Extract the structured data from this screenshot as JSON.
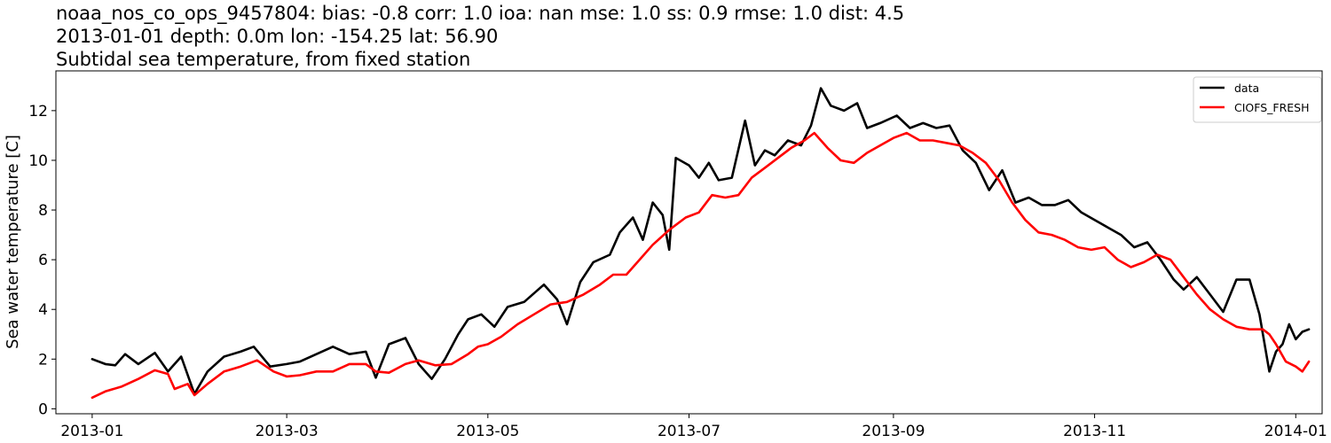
{
  "title": {
    "line1": "noaa_nos_co_ops_9457804: bias: -0.8  corr: 1.0  ioa: nan  mse: 1.0  ss: 0.9  rmse: 1.0  dist: 4.5",
    "line2": "2013-01-01 depth: 0.0m lon: -154.25 lat: 56.90",
    "line3": "Subtidal sea temperature, from fixed station"
  },
  "chart_data": {
    "type": "line",
    "ylabel": "Sea water temperature [C]",
    "xlabel": "",
    "xlim": [
      "2012-12-21",
      "2014-01-09"
    ],
    "ylim": [
      -0.2,
      13.6
    ],
    "x_ticks": [
      "2013-01",
      "2013-03",
      "2013-05",
      "2013-07",
      "2013-09",
      "2013-11",
      "2014-01"
    ],
    "y_ticks": [
      0,
      2,
      4,
      6,
      8,
      10,
      12
    ],
    "grid": false,
    "legend_position": "top-right",
    "series": [
      {
        "name": "data",
        "color": "#000000",
        "points": [
          [
            "2013-01-01",
            2.0
          ],
          [
            "2013-01-05",
            1.8
          ],
          [
            "2013-01-08",
            1.75
          ],
          [
            "2013-01-11",
            2.2
          ],
          [
            "2013-01-15",
            1.8
          ],
          [
            "2013-01-20",
            2.25
          ],
          [
            "2013-01-24",
            1.5
          ],
          [
            "2013-01-28",
            2.1
          ],
          [
            "2013-02-01",
            0.6
          ],
          [
            "2013-02-05",
            1.5
          ],
          [
            "2013-02-10",
            2.1
          ],
          [
            "2013-02-15",
            2.3
          ],
          [
            "2013-02-19",
            2.5
          ],
          [
            "2013-02-24",
            1.7
          ],
          [
            "2013-03-01",
            1.8
          ],
          [
            "2013-03-05",
            1.9
          ],
          [
            "2013-03-10",
            2.2
          ],
          [
            "2013-03-15",
            2.5
          ],
          [
            "2013-03-20",
            2.2
          ],
          [
            "2013-03-25",
            2.3
          ],
          [
            "2013-03-28",
            1.25
          ],
          [
            "2013-04-01",
            2.6
          ],
          [
            "2013-04-06",
            2.85
          ],
          [
            "2013-04-10",
            1.8
          ],
          [
            "2013-04-14",
            1.2
          ],
          [
            "2013-04-18",
            2.0
          ],
          [
            "2013-04-22",
            3.0
          ],
          [
            "2013-04-25",
            3.6
          ],
          [
            "2013-04-29",
            3.8
          ],
          [
            "2013-05-03",
            3.3
          ],
          [
            "2013-05-07",
            4.1
          ],
          [
            "2013-05-12",
            4.3
          ],
          [
            "2013-05-18",
            5.0
          ],
          [
            "2013-05-22",
            4.4
          ],
          [
            "2013-05-25",
            3.4
          ],
          [
            "2013-05-29",
            5.1
          ],
          [
            "2013-06-02",
            5.9
          ],
          [
            "2013-06-07",
            6.2
          ],
          [
            "2013-06-10",
            7.1
          ],
          [
            "2013-06-14",
            7.7
          ],
          [
            "2013-06-17",
            6.8
          ],
          [
            "2013-06-20",
            8.3
          ],
          [
            "2013-06-23",
            7.8
          ],
          [
            "2013-06-25",
            6.4
          ],
          [
            "2013-06-27",
            10.1
          ],
          [
            "2013-07-01",
            9.8
          ],
          [
            "2013-07-04",
            9.3
          ],
          [
            "2013-07-07",
            9.9
          ],
          [
            "2013-07-10",
            9.2
          ],
          [
            "2013-07-14",
            9.3
          ],
          [
            "2013-07-18",
            11.6
          ],
          [
            "2013-07-21",
            9.8
          ],
          [
            "2013-07-24",
            10.4
          ],
          [
            "2013-07-27",
            10.2
          ],
          [
            "2013-07-31",
            10.8
          ],
          [
            "2013-08-04",
            10.6
          ],
          [
            "2013-08-07",
            11.4
          ],
          [
            "2013-08-10",
            12.9
          ],
          [
            "2013-08-13",
            12.2
          ],
          [
            "2013-08-17",
            12.0
          ],
          [
            "2013-08-21",
            12.3
          ],
          [
            "2013-08-24",
            11.3
          ],
          [
            "2013-08-28",
            11.5
          ],
          [
            "2013-09-02",
            11.8
          ],
          [
            "2013-09-06",
            11.3
          ],
          [
            "2013-09-10",
            11.5
          ],
          [
            "2013-09-14",
            11.3
          ],
          [
            "2013-09-18",
            11.4
          ],
          [
            "2013-09-22",
            10.4
          ],
          [
            "2013-09-26",
            9.9
          ],
          [
            "2013-09-30",
            8.8
          ],
          [
            "2013-10-04",
            9.6
          ],
          [
            "2013-10-08",
            8.3
          ],
          [
            "2013-10-12",
            8.5
          ],
          [
            "2013-10-16",
            8.2
          ],
          [
            "2013-10-20",
            8.2
          ],
          [
            "2013-10-24",
            8.4
          ],
          [
            "2013-10-28",
            7.9
          ],
          [
            "2013-11-01",
            7.6
          ],
          [
            "2013-11-05",
            7.3
          ],
          [
            "2013-11-09",
            7.0
          ],
          [
            "2013-11-13",
            6.5
          ],
          [
            "2013-11-17",
            6.7
          ],
          [
            "2013-11-21",
            6.0
          ],
          [
            "2013-11-25",
            5.2
          ],
          [
            "2013-11-28",
            4.8
          ],
          [
            "2013-12-02",
            5.3
          ],
          [
            "2013-12-06",
            4.6
          ],
          [
            "2013-12-10",
            3.9
          ],
          [
            "2013-12-14",
            5.2
          ],
          [
            "2013-12-18",
            5.2
          ],
          [
            "2013-12-21",
            3.8
          ],
          [
            "2013-12-24",
            1.5
          ],
          [
            "2013-12-26",
            2.3
          ],
          [
            "2013-12-28",
            2.6
          ],
          [
            "2013-12-30",
            3.4
          ],
          [
            "2014-01-01",
            2.8
          ],
          [
            "2014-01-03",
            3.1
          ],
          [
            "2014-01-05",
            3.2
          ]
        ]
      },
      {
        "name": "CIOFS_FRESH",
        "color": "#ff0000",
        "points": [
          [
            "2013-01-01",
            0.45
          ],
          [
            "2013-01-05",
            0.7
          ],
          [
            "2013-01-10",
            0.9
          ],
          [
            "2013-01-15",
            1.2
          ],
          [
            "2013-01-20",
            1.55
          ],
          [
            "2013-01-24",
            1.4
          ],
          [
            "2013-01-26",
            0.8
          ],
          [
            "2013-01-30",
            1.0
          ],
          [
            "2013-02-01",
            0.55
          ],
          [
            "2013-02-05",
            1.0
          ],
          [
            "2013-02-10",
            1.5
          ],
          [
            "2013-02-15",
            1.7
          ],
          [
            "2013-02-20",
            1.95
          ],
          [
            "2013-02-25",
            1.5
          ],
          [
            "2013-03-01",
            1.3
          ],
          [
            "2013-03-05",
            1.35
          ],
          [
            "2013-03-10",
            1.5
          ],
          [
            "2013-03-15",
            1.5
          ],
          [
            "2013-03-20",
            1.8
          ],
          [
            "2013-03-25",
            1.8
          ],
          [
            "2013-03-28",
            1.5
          ],
          [
            "2013-04-01",
            1.45
          ],
          [
            "2013-04-06",
            1.8
          ],
          [
            "2013-04-10",
            1.95
          ],
          [
            "2013-04-15",
            1.75
          ],
          [
            "2013-04-20",
            1.8
          ],
          [
            "2013-04-25",
            2.2
          ],
          [
            "2013-04-28",
            2.5
          ],
          [
            "2013-05-01",
            2.6
          ],
          [
            "2013-05-05",
            2.9
          ],
          [
            "2013-05-10",
            3.4
          ],
          [
            "2013-05-15",
            3.8
          ],
          [
            "2013-05-20",
            4.2
          ],
          [
            "2013-05-25",
            4.3
          ],
          [
            "2013-05-30",
            4.6
          ],
          [
            "2013-06-04",
            5.0
          ],
          [
            "2013-06-08",
            5.4
          ],
          [
            "2013-06-12",
            5.4
          ],
          [
            "2013-06-16",
            6.0
          ],
          [
            "2013-06-20",
            6.6
          ],
          [
            "2013-06-25",
            7.2
          ],
          [
            "2013-06-30",
            7.7
          ],
          [
            "2013-07-04",
            7.9
          ],
          [
            "2013-07-08",
            8.6
          ],
          [
            "2013-07-12",
            8.5
          ],
          [
            "2013-07-16",
            8.6
          ],
          [
            "2013-07-20",
            9.3
          ],
          [
            "2013-07-24",
            9.7
          ],
          [
            "2013-07-28",
            10.1
          ],
          [
            "2013-08-01",
            10.5
          ],
          [
            "2013-08-05",
            10.8
          ],
          [
            "2013-08-08",
            11.1
          ],
          [
            "2013-08-12",
            10.5
          ],
          [
            "2013-08-16",
            10.0
          ],
          [
            "2013-08-20",
            9.9
          ],
          [
            "2013-08-24",
            10.3
          ],
          [
            "2013-08-28",
            10.6
          ],
          [
            "2013-09-01",
            10.9
          ],
          [
            "2013-09-05",
            11.1
          ],
          [
            "2013-09-09",
            10.8
          ],
          [
            "2013-09-13",
            10.8
          ],
          [
            "2013-09-17",
            10.7
          ],
          [
            "2013-09-21",
            10.6
          ],
          [
            "2013-09-25",
            10.3
          ],
          [
            "2013-09-29",
            9.9
          ],
          [
            "2013-10-03",
            9.2
          ],
          [
            "2013-10-07",
            8.3
          ],
          [
            "2013-10-11",
            7.6
          ],
          [
            "2013-10-15",
            7.1
          ],
          [
            "2013-10-19",
            7.0
          ],
          [
            "2013-10-23",
            6.8
          ],
          [
            "2013-10-27",
            6.5
          ],
          [
            "2013-10-31",
            6.4
          ],
          [
            "2013-11-04",
            6.5
          ],
          [
            "2013-11-08",
            6.0
          ],
          [
            "2013-11-12",
            5.7
          ],
          [
            "2013-11-16",
            5.9
          ],
          [
            "2013-11-20",
            6.2
          ],
          [
            "2013-11-24",
            6.0
          ],
          [
            "2013-11-28",
            5.3
          ],
          [
            "2013-12-02",
            4.6
          ],
          [
            "2013-12-06",
            4.0
          ],
          [
            "2013-12-10",
            3.6
          ],
          [
            "2013-12-14",
            3.3
          ],
          [
            "2013-12-18",
            3.2
          ],
          [
            "2013-12-22",
            3.2
          ],
          [
            "2013-12-24",
            3.0
          ],
          [
            "2013-12-26",
            2.6
          ],
          [
            "2013-12-29",
            1.9
          ],
          [
            "2014-01-01",
            1.7
          ],
          [
            "2014-01-03",
            1.5
          ],
          [
            "2014-01-05",
            1.9
          ]
        ]
      }
    ]
  }
}
